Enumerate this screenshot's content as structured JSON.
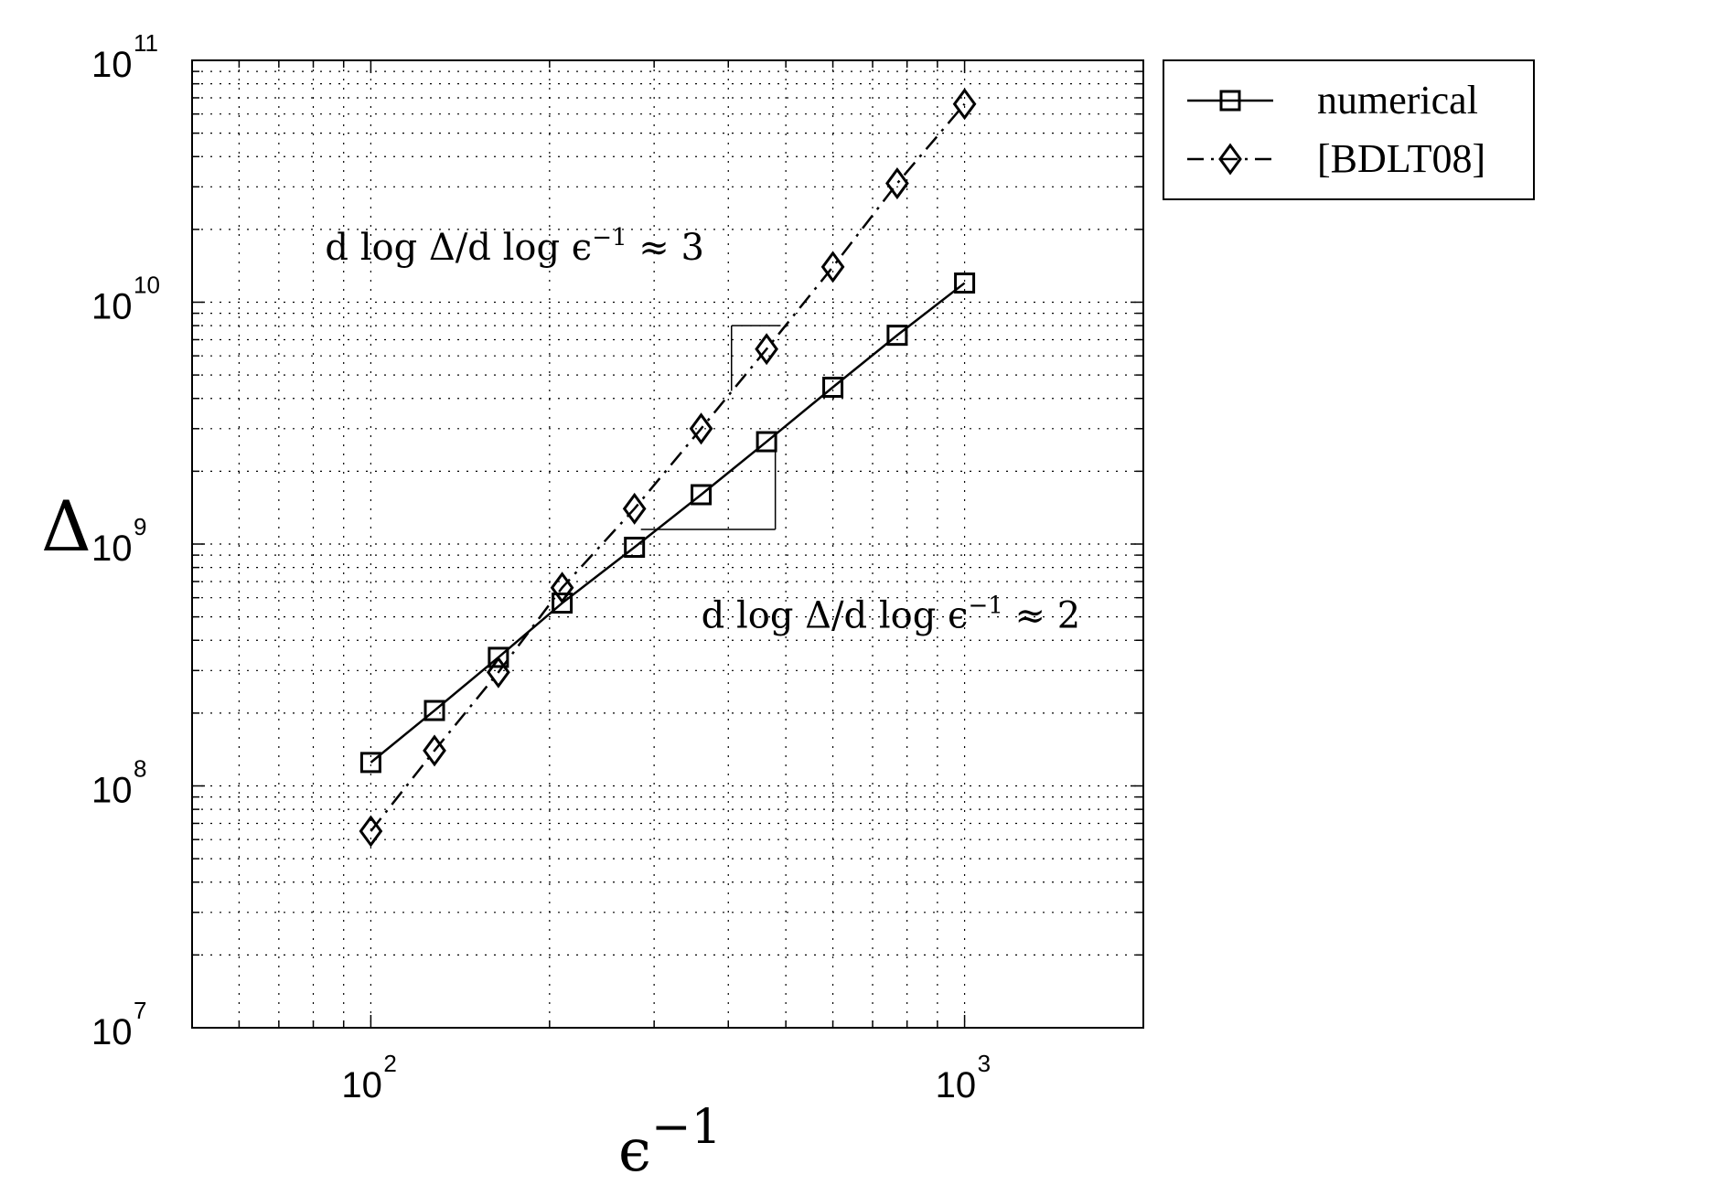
{
  "chart_data": {
    "type": "line",
    "xscale": "log",
    "yscale": "log",
    "xlabel": "ϵ",
    "xlabel_exp": "−1",
    "ylabel": "Δ",
    "xlim": [
      50,
      2000
    ],
    "ylim": [
      10000000,
      100000000000
    ],
    "grid": true,
    "legend_position": "outside-top-right",
    "x_ticks": [
      {
        "base": "10",
        "exp": "2",
        "value": 100
      },
      {
        "base": "10",
        "exp": "3",
        "value": 1000
      }
    ],
    "y_ticks": [
      {
        "base": "10",
        "exp": "7",
        "value": 10000000
      },
      {
        "base": "10",
        "exp": "8",
        "value": 100000000
      },
      {
        "base": "10",
        "exp": "9",
        "value": 1000000000
      },
      {
        "base": "10",
        "exp": "10",
        "value": 10000000000
      },
      {
        "base": "10",
        "exp": "11",
        "value": 100000000000
      }
    ],
    "series": [
      {
        "name": "numerical",
        "marker": "square",
        "line_style": "solid",
        "color": "#000000",
        "x": [
          100,
          128,
          164,
          210,
          278,
          360,
          464,
          600,
          770,
          1000
        ],
        "y": [
          125000000,
          205000000,
          340000000,
          570000000,
          970000000,
          1600000000,
          2650000000,
          4450000000,
          7300000000,
          12000000000
        ]
      },
      {
        "name": "[BDLT08]",
        "marker": "diamond",
        "line_style": "dashdot",
        "color": "#000000",
        "x": [
          100,
          128,
          164,
          210,
          278,
          360,
          464,
          600,
          770,
          1000
        ],
        "y": [
          65000000,
          140000000,
          295000000,
          660000000,
          1400000000,
          3000000000,
          6400000000,
          14000000000,
          31000000000,
          66000000000
        ]
      }
    ],
    "annotations": [
      {
        "text_main": "d log Δ/d log ϵ",
        "exp": "−1",
        "text_tail": " ≈ 3",
        "x": 100,
        "y": 15000000000
      },
      {
        "text_main": "d log Δ/d log ϵ",
        "exp": "−1",
        "text_tail": " ≈ 2",
        "x": 430,
        "y": 450000000
      }
    ],
    "slope_triangles": [
      {
        "series": "[BDLT08]",
        "corner": [
          405,
          8000000000
        ],
        "x2": 490,
        "y2": 4300000000
      },
      {
        "series": "numerical",
        "corner": [
          480,
          1150000000
        ],
        "x2": 285,
        "y2": 2650000000
      }
    ]
  }
}
